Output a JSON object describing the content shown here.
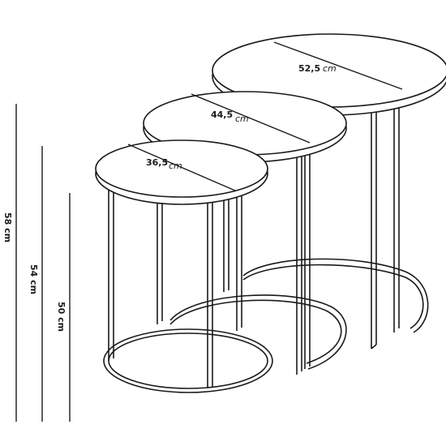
{
  "tables": {
    "large": {
      "diameter_label": "52,5",
      "unit": "cm"
    },
    "medium": {
      "diameter_label": "44,5",
      "unit": "cm"
    },
    "small": {
      "diameter_label": "36,5",
      "unit": "cm"
    }
  },
  "heights": {
    "h1": {
      "value": "58",
      "unit": "cm"
    },
    "h2": {
      "value": "54",
      "unit": "cm"
    },
    "h3": {
      "value": "50",
      "unit": "cm"
    }
  }
}
